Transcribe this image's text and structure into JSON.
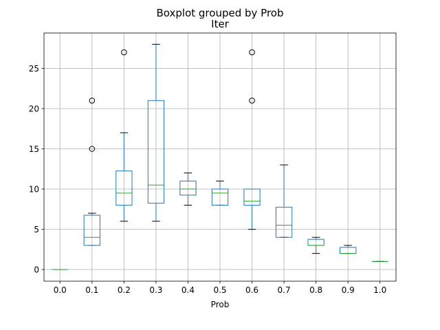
{
  "chart_data": {
    "type": "boxplot",
    "suptitle": "Boxplot grouped by Prob",
    "title": "Iter",
    "xlabel": "Prob",
    "ylabel": "",
    "ylim": [
      -1.45,
      29.4
    ],
    "yticks": [
      0,
      5,
      10,
      15,
      20,
      25
    ],
    "grid": true,
    "colors": {
      "box": "#1f77b4",
      "median": "#2ca02c",
      "grid": "#b0b0b0",
      "frame": "#000000"
    },
    "categories": [
      "0.0",
      "0.1",
      "0.2",
      "0.3",
      "0.4",
      "0.5",
      "0.6",
      "0.7",
      "0.8",
      "0.9",
      "1.0"
    ],
    "boxes": [
      {
        "whislo": 0,
        "q1": 0,
        "med": 0,
        "q3": 0,
        "whishi": 0,
        "fliers": []
      },
      {
        "whislo": 3,
        "q1": 3,
        "med": 4,
        "q3": 6.75,
        "whishi": 7,
        "fliers": [
          15,
          21
        ]
      },
      {
        "whislo": 6,
        "q1": 8,
        "med": 9.5,
        "q3": 12.25,
        "whishi": 17,
        "fliers": [
          27
        ]
      },
      {
        "whislo": 6,
        "q1": 8.25,
        "med": 10.5,
        "q3": 21,
        "whishi": 28,
        "fliers": []
      },
      {
        "whislo": 8,
        "q1": 9.25,
        "med": 10,
        "q3": 11,
        "whishi": 12,
        "fliers": []
      },
      {
        "whislo": 8,
        "q1": 8,
        "med": 9.5,
        "q3": 10,
        "whishi": 11,
        "fliers": []
      },
      {
        "whislo": 5,
        "q1": 8,
        "med": 8.5,
        "q3": 10,
        "whishi": 10,
        "fliers": [
          21,
          27
        ]
      },
      {
        "whislo": 4,
        "q1": 4,
        "med": 5.5,
        "q3": 7.75,
        "whishi": 13,
        "fliers": []
      },
      {
        "whislo": 2,
        "q1": 3,
        "med": 3,
        "q3": 3.75,
        "whishi": 4,
        "fliers": []
      },
      {
        "whislo": 2,
        "q1": 2,
        "med": 2,
        "q3": 2.75,
        "whishi": 3,
        "fliers": []
      },
      {
        "whislo": 1,
        "q1": 1,
        "med": 1,
        "q3": 1,
        "whishi": 1,
        "fliers": []
      }
    ]
  }
}
